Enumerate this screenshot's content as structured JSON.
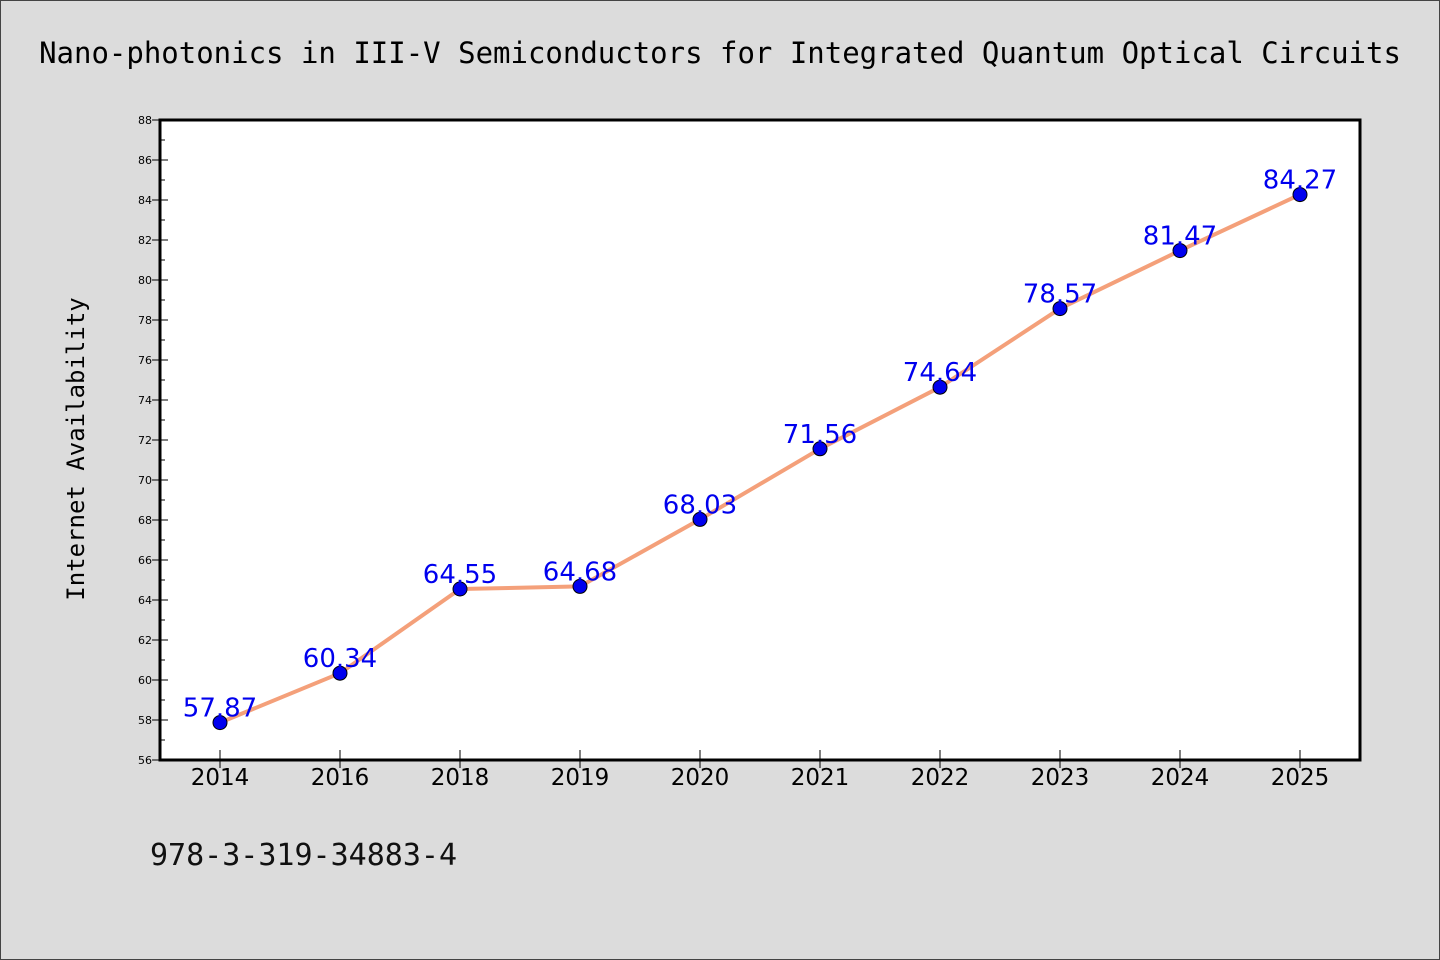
{
  "chart_data": {
    "type": "line",
    "title": "Nano-photonics in III-V Semiconductors for Integrated Quantum Optical Circuits",
    "xlabel": "",
    "ylabel": "Internet Availability",
    "categories": [
      "2014",
      "2016",
      "2018",
      "2019",
      "2020",
      "2021",
      "2022",
      "2023",
      "2024",
      "2025"
    ],
    "series": [
      {
        "values": [
          57.87,
          60.34,
          64.55,
          64.68,
          68.03,
          71.56,
          74.64,
          78.57,
          81.47,
          84.27
        ],
        "data_labels": [
          "57.87",
          "60.34",
          "64.55",
          "64.68",
          "68.03",
          "71.56",
          "74.64",
          "78.57",
          "81.47",
          "84.27"
        ],
        "line_color": "#f4a07a",
        "marker_color": "#0000ee",
        "label_color": "#0000ee"
      }
    ],
    "ylim": [
      56,
      88
    ],
    "y_ticks": [
      "56",
      "58",
      "60",
      "62",
      "64",
      "66",
      "68",
      "70",
      "72",
      "74",
      "76",
      "78",
      "80",
      "82",
      "84",
      "86",
      "88"
    ],
    "grid": false,
    "legend": "none",
    "plot_background": "#ffffff",
    "figure_background": "#dcdcdc"
  },
  "footnote": "978-3-319-34883-4"
}
